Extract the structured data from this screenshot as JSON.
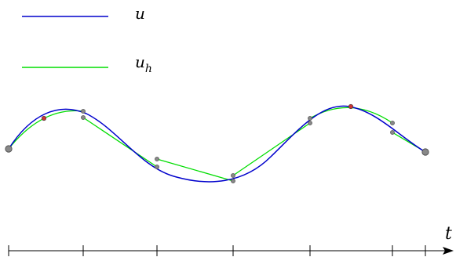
{
  "legend": {
    "exact_label": "u",
    "approx_label_base": "u",
    "approx_label_sub": "h"
  },
  "axis": {
    "label": "t"
  },
  "colors": {
    "exact": "#0000cc",
    "approx": "#00dd00",
    "node_fill": "#888888",
    "midpoint_fill": "#cc3333",
    "axis": "#000000"
  }
}
